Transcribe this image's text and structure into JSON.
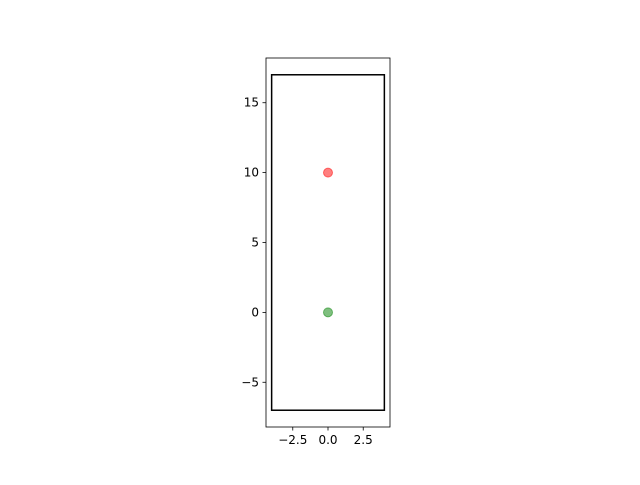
{
  "chart_data": {
    "type": "scatter",
    "title": "",
    "xlabel": "",
    "ylabel": "",
    "xlim": [
      -4.4,
      4.4
    ],
    "ylim": [
      -8.2,
      18.2
    ],
    "grid": false,
    "xticks": [
      {
        "value": -2.5,
        "label": "−2.5"
      },
      {
        "value": 0.0,
        "label": "0.0"
      },
      {
        "value": 2.5,
        "label": "2.5"
      }
    ],
    "yticks": [
      {
        "value": -5,
        "label": "−5"
      },
      {
        "value": 0,
        "label": "0"
      },
      {
        "value": 5,
        "label": "5"
      },
      {
        "value": 10,
        "label": "10"
      },
      {
        "value": 15,
        "label": "15"
      }
    ],
    "rectangle": {
      "x": [
        -4,
        4
      ],
      "y": [
        -7,
        17
      ],
      "color": "#000000"
    },
    "points": [
      {
        "x": 0,
        "y": 10,
        "color": "#ff0000",
        "alpha": 0.5
      },
      {
        "x": 0,
        "y": 0,
        "color": "#008000",
        "alpha": 0.5
      }
    ]
  }
}
